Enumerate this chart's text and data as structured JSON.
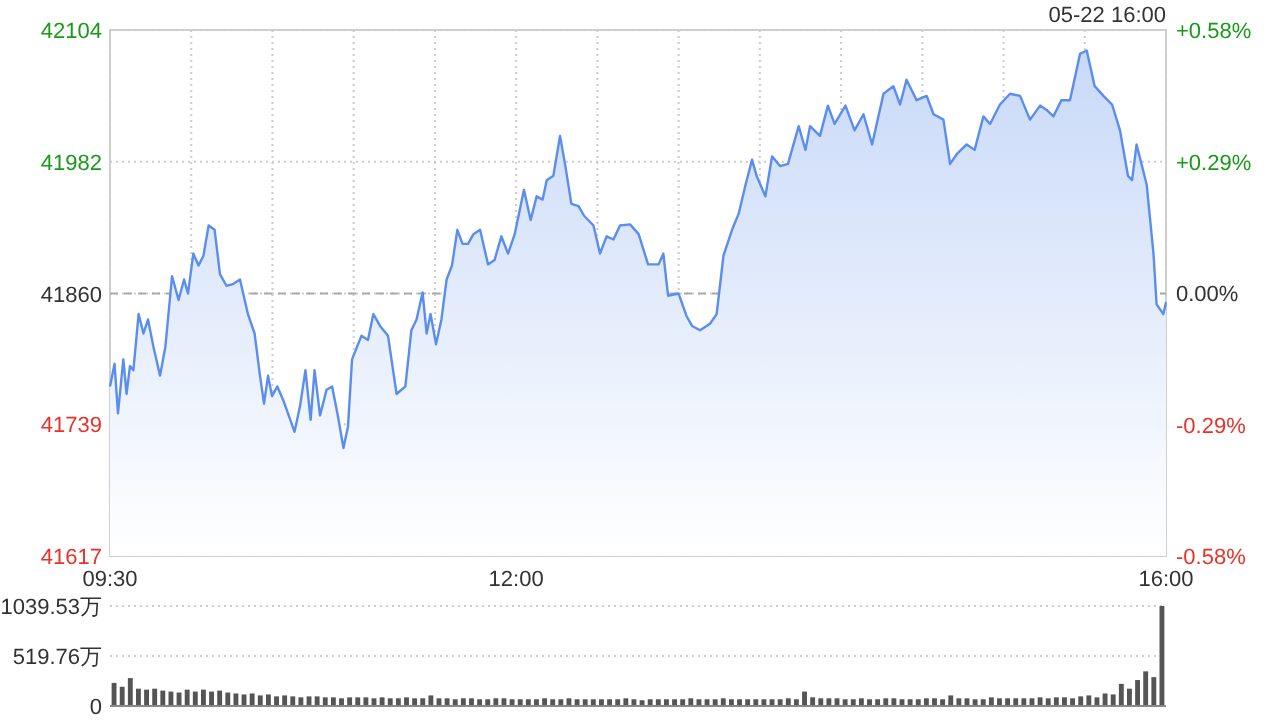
{
  "chart_data": [
    {
      "type": "area",
      "xlim": [
        9.5,
        16
      ],
      "xticks": [
        {
          "value": 9.5,
          "label": "09:30"
        },
        {
          "value": 10,
          "label": null
        },
        {
          "value": 10.5,
          "label": null
        },
        {
          "value": 11,
          "label": null
        },
        {
          "value": 11.5,
          "label": null
        },
        {
          "value": 12,
          "label": "12:00"
        },
        {
          "value": 12.5,
          "label": null
        },
        {
          "value": 13,
          "label": null
        },
        {
          "value": 13.5,
          "label": null
        },
        {
          "value": 14,
          "label": null
        },
        {
          "value": 14.5,
          "label": null
        },
        {
          "value": 15,
          "label": null
        },
        {
          "value": 15.5,
          "label": null
        },
        {
          "value": 16,
          "label": "16:00"
        }
      ],
      "ylim": [
        41617,
        42104
      ],
      "yticks": [
        41617,
        41739,
        41860,
        41982,
        42104
      ],
      "y2lim": [
        -0.58,
        0.58
      ],
      "y2ticks": [
        {
          "value": -0.58,
          "label": "-0.58%"
        },
        {
          "value": -0.29,
          "label": "-0.29%"
        },
        {
          "value": 0,
          "label": "0.00%"
        },
        {
          "value": 0.29,
          "label": "+0.29%"
        },
        {
          "value": 0.58,
          "label": "+0.58%"
        }
      ],
      "grid": true,
      "ref_lines": [
        {
          "axis": "y",
          "value": 41860,
          "color": "#aaaaaa",
          "line_style": "dashed"
        }
      ],
      "annotations": [
        "05-22 16:00"
      ],
      "series": [
        {
          "color": "#5b8def",
          "x": [
            9.5,
            9.528,
            9.549,
            9.582,
            9.602,
            9.623,
            9.644,
            9.676,
            9.706,
            9.734,
            9.767,
            9.808,
            9.841,
            9.882,
            9.922,
            9.956,
            9.98,
            10.013,
            10.045,
            10.075,
            10.107,
            10.144,
            10.177,
            10.218,
            10.26,
            10.3,
            10.349,
            10.39,
            10.423,
            10.448,
            10.473,
            10.497,
            10.53,
            10.567,
            10.636,
            10.67,
            10.703,
            10.735,
            10.759,
            10.793,
            10.833,
            10.867,
            10.9,
            10.937,
            10.965,
            10.99,
            11.048,
            11.088,
            11.121,
            11.162,
            11.211,
            11.264,
            11.318,
            11.355,
            11.387,
            11.424,
            11.449,
            11.473,
            11.507,
            11.54,
            11.572,
            11.605,
            11.638,
            11.67,
            11.704,
            11.737,
            11.778,
            11.827,
            11.867,
            11.909,
            11.95,
            11.991,
            12.048,
            12.089,
            12.126,
            12.163,
            12.188,
            12.229,
            12.27,
            12.303,
            12.34,
            12.384,
            12.418,
            12.476,
            12.516,
            12.557,
            12.599,
            12.639,
            12.701,
            12.754,
            12.812,
            12.877,
            12.906,
            12.935,
            13.0,
            13.049,
            13.083,
            13.132,
            13.193,
            13.234,
            13.276,
            13.329,
            13.37,
            13.411,
            13.452,
            13.48,
            13.534,
            13.575,
            13.624,
            13.673,
            13.739,
            13.781,
            13.809,
            13.87,
            13.919,
            13.96,
            14.027,
            14.083,
            14.138,
            14.191,
            14.261,
            14.322,
            14.363,
            14.403,
            14.465,
            14.527,
            14.569,
            14.63,
            14.671,
            14.712,
            14.773,
            14.822,
            14.876,
            14.917,
            14.978,
            15.04,
            15.102,
            15.163,
            15.225,
            15.265,
            15.307,
            15.356,
            15.409,
            15.471,
            15.512,
            15.561,
            15.615,
            15.668,
            15.717,
            15.766,
            15.791,
            15.819,
            15.881,
            15.923,
            15.942,
            15.984,
            16.0
          ],
          "values": [
            41774,
            41795,
            41749,
            41799,
            41767,
            41793,
            41789,
            41841,
            41823,
            41836,
            41811,
            41784,
            41811,
            41876,
            41854,
            41873,
            41860,
            41897,
            41886,
            41895,
            41923,
            41919,
            41878,
            41867,
            41869,
            41873,
            41841,
            41823,
            41784,
            41758,
            41784,
            41765,
            41774,
            41761,
            41732,
            41756,
            41789,
            41743,
            41789,
            41747,
            41771,
            41774,
            41749,
            41717,
            41737,
            41799,
            41821,
            41817,
            41841,
            41830,
            41821,
            41767,
            41774,
            41826,
            41836,
            41861,
            41823,
            41841,
            41813,
            41836,
            41873,
            41886,
            41919,
            41906,
            41906,
            41915,
            41919,
            41887,
            41891,
            41913,
            41897,
            41915,
            41956,
            41928,
            41950,
            41947,
            41965,
            41969,
            42006,
            41978,
            41943,
            41941,
            41932,
            41923,
            41897,
            41913,
            41910,
            41923,
            41924,
            41915,
            41887,
            41887,
            41897,
            41858,
            41860,
            41839,
            41830,
            41826,
            41832,
            41841,
            41895,
            41919,
            41934,
            41960,
            41984,
            41969,
            41950,
            41987,
            41978,
            41980,
            42015,
            41993,
            42015,
            42006,
            42034,
            42017,
            42034,
            42011,
            42026,
            41998,
            42045,
            42052,
            42035,
            42058,
            42039,
            42043,
            42026,
            42021,
            41980,
            41989,
            41998,
            41993,
            42024,
            42017,
            42035,
            42045,
            42043,
            42021,
            42034,
            42030,
            42024,
            42039,
            42039,
            42082,
            42085,
            42052,
            42043,
            42035,
            42011,
            41969,
            41965,
            41998,
            41961,
            41897,
            41850,
            41841,
            41852
          ]
        }
      ]
    },
    {
      "type": "bar",
      "tick_labels": "y",
      "grid": "y",
      "categories": [
        null,
        null,
        null,
        null,
        null,
        null,
        null,
        null,
        null,
        null,
        null,
        null,
        null,
        null,
        null,
        null,
        null,
        null,
        null,
        null,
        null,
        null,
        null,
        null,
        null,
        null,
        null,
        null,
        null,
        null,
        null,
        null,
        null,
        null,
        null,
        null,
        null,
        null,
        null,
        null,
        null,
        null,
        null,
        null,
        null,
        null,
        null,
        null,
        null,
        null,
        null,
        null,
        null,
        null,
        null,
        null,
        null,
        null,
        null,
        null,
        null,
        null,
        null,
        null,
        null,
        null,
        null,
        null,
        null,
        null,
        null,
        null,
        null,
        null,
        null,
        null,
        null,
        null,
        null,
        null,
        null,
        null,
        null,
        null,
        null,
        null,
        null,
        null,
        null,
        null,
        null,
        null,
        null,
        null,
        null,
        null,
        null,
        null,
        null,
        null,
        null,
        null,
        null,
        null,
        null,
        null,
        null,
        null,
        null,
        null,
        null,
        null,
        null,
        null,
        null,
        null,
        null,
        null,
        null,
        null,
        null,
        null,
        null,
        null,
        null,
        null,
        null,
        null,
        null,
        null
      ],
      "ylim": [
        0,
        1039.53
      ],
      "yticks": [
        0,
        {
          "value": 519.76,
          "label": "519.76万"
        },
        {
          "value": 1039.53,
          "label": "1039.53万"
        }
      ],
      "color": "#555555",
      "values": [
        240,
        200,
        290,
        180,
        170,
        180,
        160,
        150,
        140,
        170,
        150,
        170,
        150,
        160,
        140,
        130,
        120,
        130,
        110,
        120,
        100,
        110,
        100,
        90,
        100,
        100,
        90,
        90,
        80,
        90,
        90,
        90,
        80,
        90,
        80,
        80,
        90,
        80,
        80,
        110,
        80,
        80,
        70,
        80,
        80,
        70,
        70,
        80,
        80,
        70,
        70,
        70,
        70,
        80,
        70,
        70,
        80,
        70,
        70,
        70,
        70,
        70,
        70,
        80,
        70,
        60,
        70,
        70,
        70,
        70,
        70,
        80,
        70,
        70,
        70,
        80,
        70,
        70,
        70,
        70,
        70,
        70,
        70,
        80,
        70,
        150,
        90,
        80,
        80,
        80,
        70,
        70,
        80,
        70,
        70,
        80,
        80,
        70,
        70,
        70,
        80,
        80,
        70,
        110,
        80,
        80,
        70,
        70,
        90,
        80,
        80,
        80,
        80,
        80,
        90,
        80,
        90,
        90,
        80,
        100,
        110,
        90,
        130,
        120,
        230,
        180,
        270,
        360,
        300,
        1039.53
      ]
    }
  ]
}
